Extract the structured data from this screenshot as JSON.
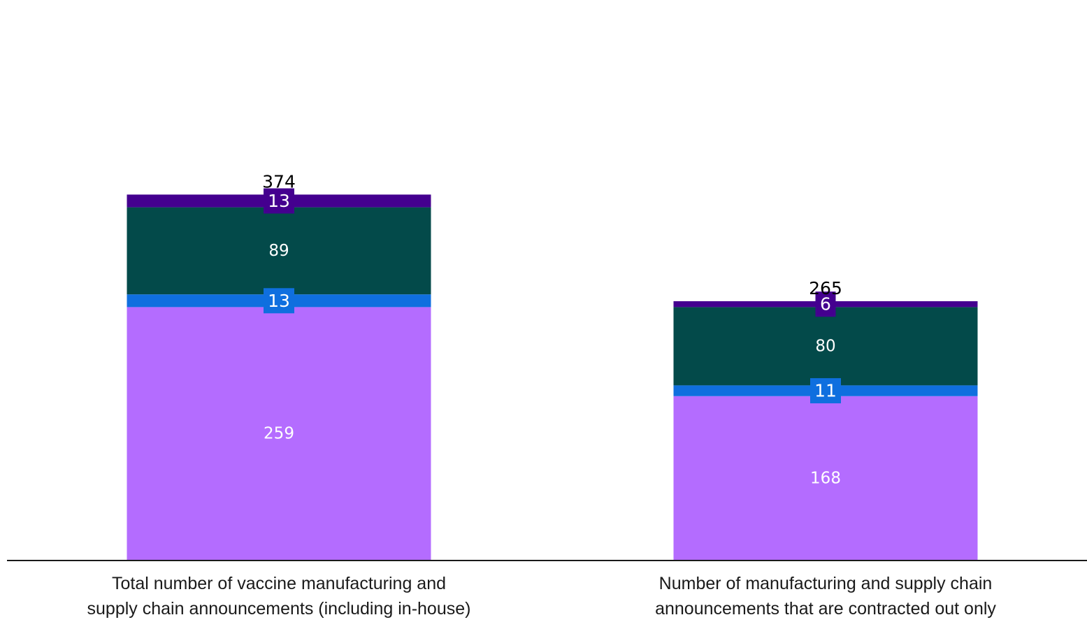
{
  "chart_data": {
    "type": "bar",
    "stacked": true,
    "categories": [
      [
        "Total number of vaccine manufacturing and",
        "supply chain announcements (including in-house)"
      ],
      [
        "Number of manufacturing and supply chain",
        "announcements that are contracted out only"
      ]
    ],
    "series": [
      {
        "values": [
          259,
          168
        ],
        "color": "#b46cff",
        "label_box": false
      },
      {
        "values": [
          13,
          11
        ],
        "color": "#0f6fdf",
        "label_box": true
      },
      {
        "values": [
          89,
          80
        ],
        "color": "#034a4a",
        "label_box": false
      },
      {
        "values": [
          13,
          6
        ],
        "color": "#44008f",
        "label_box": true
      }
    ],
    "totals": [
      374,
      265
    ],
    "ylim": [
      0,
      400
    ],
    "grid": false,
    "legend": "none"
  }
}
